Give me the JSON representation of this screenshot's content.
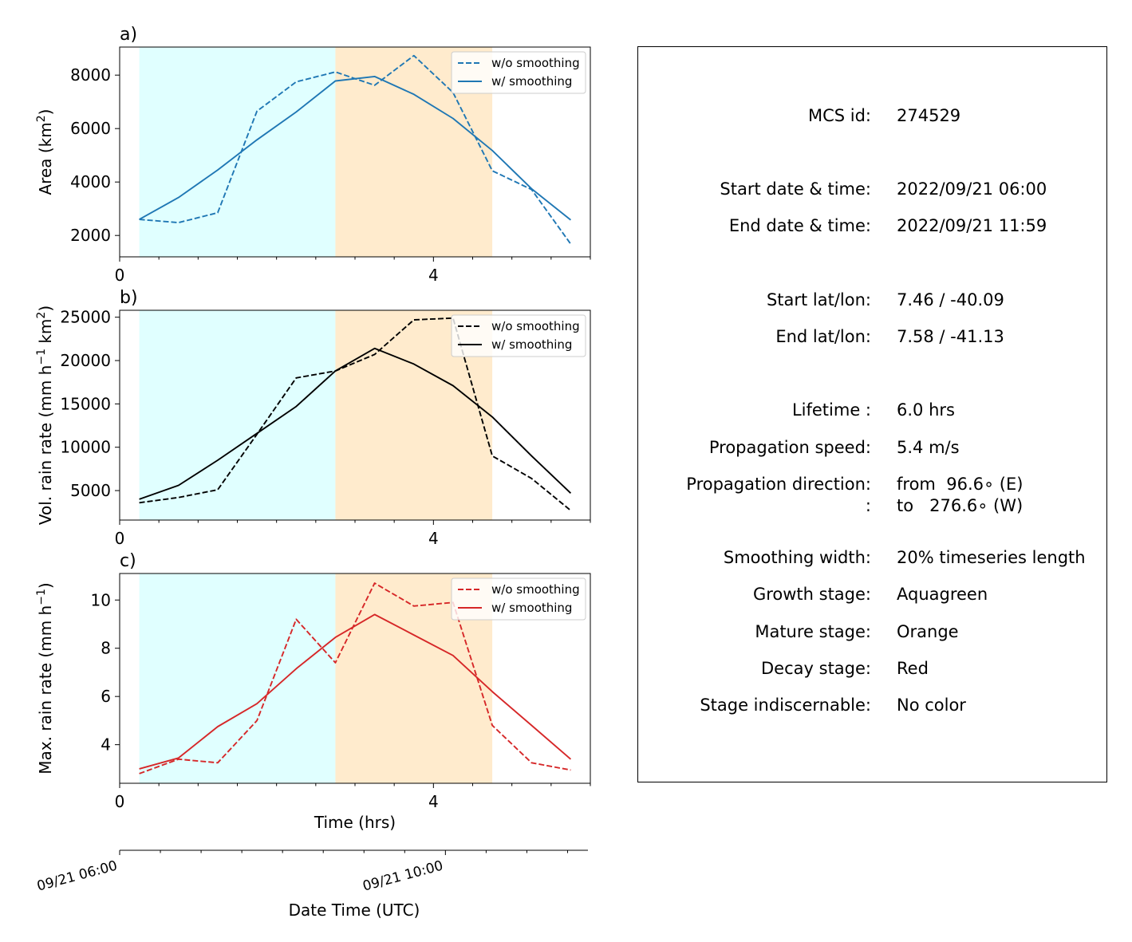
{
  "colors": {
    "growth_bg": "#e0ffff",
    "mature_bg": "#ffebcd",
    "area": "#1f77b4",
    "vol": "#000000",
    "max": "#d62728"
  },
  "stages": {
    "growth": [
      0.25,
      2.75
    ],
    "mature": [
      2.75,
      4.75
    ]
  },
  "chart_data": [
    {
      "type": "line",
      "panel_label": "a)",
      "ylabel_parts": [
        "Area  (km",
        "2",
        ")"
      ],
      "xlim": [
        0,
        6
      ],
      "ylim": [
        1200,
        9050
      ],
      "xticks": [
        0,
        4
      ],
      "yticks": [
        2000,
        4000,
        6000,
        8000
      ],
      "legend": "top-right",
      "color": "#1f77b4",
      "series": [
        {
          "name": "w/o smoothing",
          "style": "dashed",
          "x": [
            0.25,
            0.75,
            1.25,
            1.75,
            2.25,
            2.75,
            3.25,
            3.75,
            4.25,
            4.75,
            5.25,
            5.75
          ],
          "y": [
            2600,
            2480,
            2850,
            6650,
            7750,
            8120,
            7620,
            8730,
            7350,
            4420,
            3720,
            1680
          ]
        },
        {
          "name": "w/ smoothing",
          "style": "solid",
          "x": [
            0.25,
            0.75,
            1.25,
            1.75,
            2.25,
            2.75,
            3.25,
            3.75,
            4.25,
            4.75,
            5.25,
            5.75
          ],
          "y": [
            2600,
            3420,
            4450,
            5580,
            6620,
            7780,
            7950,
            7280,
            6380,
            5180,
            3750,
            2580
          ]
        }
      ]
    },
    {
      "type": "line",
      "panel_label": "b)",
      "ylabel_parts": [
        "Vol. rain rate (mm h",
        "−1",
        " km",
        "2",
        ")"
      ],
      "xlim": [
        0,
        6
      ],
      "ylim": [
        1600,
        25800
      ],
      "xticks": [
        0,
        4
      ],
      "yticks": [
        5000,
        10000,
        15000,
        20000,
        25000
      ],
      "legend": "top-right",
      "color": "#000000",
      "series": [
        {
          "name": "w/o smoothing",
          "style": "dashed",
          "x": [
            0.25,
            0.75,
            1.25,
            1.75,
            2.25,
            2.75,
            3.25,
            3.75,
            4.25,
            4.75,
            5.25,
            5.75
          ],
          "y": [
            3600,
            4200,
            5100,
            11500,
            18000,
            18800,
            20700,
            24700,
            24900,
            9000,
            6400,
            2700
          ]
        },
        {
          "name": "w/ smoothing",
          "style": "solid",
          "x": [
            0.25,
            0.75,
            1.25,
            1.75,
            2.25,
            2.75,
            3.25,
            3.75,
            4.25,
            4.75,
            5.25,
            5.75
          ],
          "y": [
            4000,
            5600,
            8500,
            11600,
            14700,
            18800,
            21400,
            19600,
            17100,
            13500,
            9000,
            4700
          ]
        }
      ]
    },
    {
      "type": "line",
      "panel_label": "c)",
      "ylabel_parts": [
        "Max. rain rate  (mm h",
        "−1",
        ")"
      ],
      "xlabel": "Time (hrs)",
      "xlim": [
        0,
        6
      ],
      "ylim": [
        2.4,
        11.1
      ],
      "xticks": [
        0,
        4
      ],
      "yticks": [
        4,
        6,
        8,
        10
      ],
      "legend": "top-right",
      "color": "#d62728",
      "series": [
        {
          "name": "w/o smoothing",
          "style": "dashed",
          "x": [
            0.25,
            0.75,
            1.25,
            1.75,
            2.25,
            2.75,
            3.25,
            3.75,
            4.25,
            4.75,
            5.25,
            5.75
          ],
          "y": [
            2.8,
            3.4,
            3.25,
            5.0,
            9.2,
            7.4,
            10.7,
            9.75,
            9.9,
            4.8,
            3.25,
            2.95
          ]
        },
        {
          "name": "w/ smoothing",
          "style": "solid",
          "x": [
            0.25,
            0.75,
            1.25,
            1.75,
            2.25,
            2.75,
            3.25,
            3.75,
            4.25,
            4.75,
            5.25,
            5.75
          ],
          "y": [
            3.0,
            3.45,
            4.75,
            5.7,
            7.15,
            8.45,
            9.4,
            8.55,
            7.7,
            6.2,
            4.8,
            3.4
          ]
        }
      ]
    }
  ],
  "datetime_axis": {
    "xlabel": "Date Time (UTC)",
    "tick_labels": [
      "09/21 06:00",
      "09/21 10:00"
    ]
  },
  "info": [
    {
      "label": "MCS id:",
      "value": "274529"
    },
    {
      "label": "Start date & time:",
      "value": "2022/09/21 06:00"
    },
    {
      "label": "End date & time:",
      "value": "2022/09/21 11:59"
    },
    {
      "label": "Start lat/lon:",
      "value": "7.46 / -40.09"
    },
    {
      "label": "End lat/lon:",
      "value": "7.58 / -41.13"
    },
    {
      "label": "Lifetime :",
      "value": "6.0 hrs"
    },
    {
      "label": "Propagation speed:",
      "value": "5.4 m/s"
    },
    {
      "label": "Propagation direction:",
      "value": "from  96.6∘ (E)"
    },
    {
      "label": ":",
      "value": "to   276.6∘ (W)"
    },
    {
      "label": "Smoothing width:",
      "value": "20% timeseries length"
    },
    {
      "label": "Growth stage:",
      "value": "Aquagreen"
    },
    {
      "label": "Mature stage:",
      "value": "Orange"
    },
    {
      "label": "Decay stage:",
      "value": "Red"
    },
    {
      "label": "Stage indiscernable:",
      "value": "No color"
    }
  ]
}
